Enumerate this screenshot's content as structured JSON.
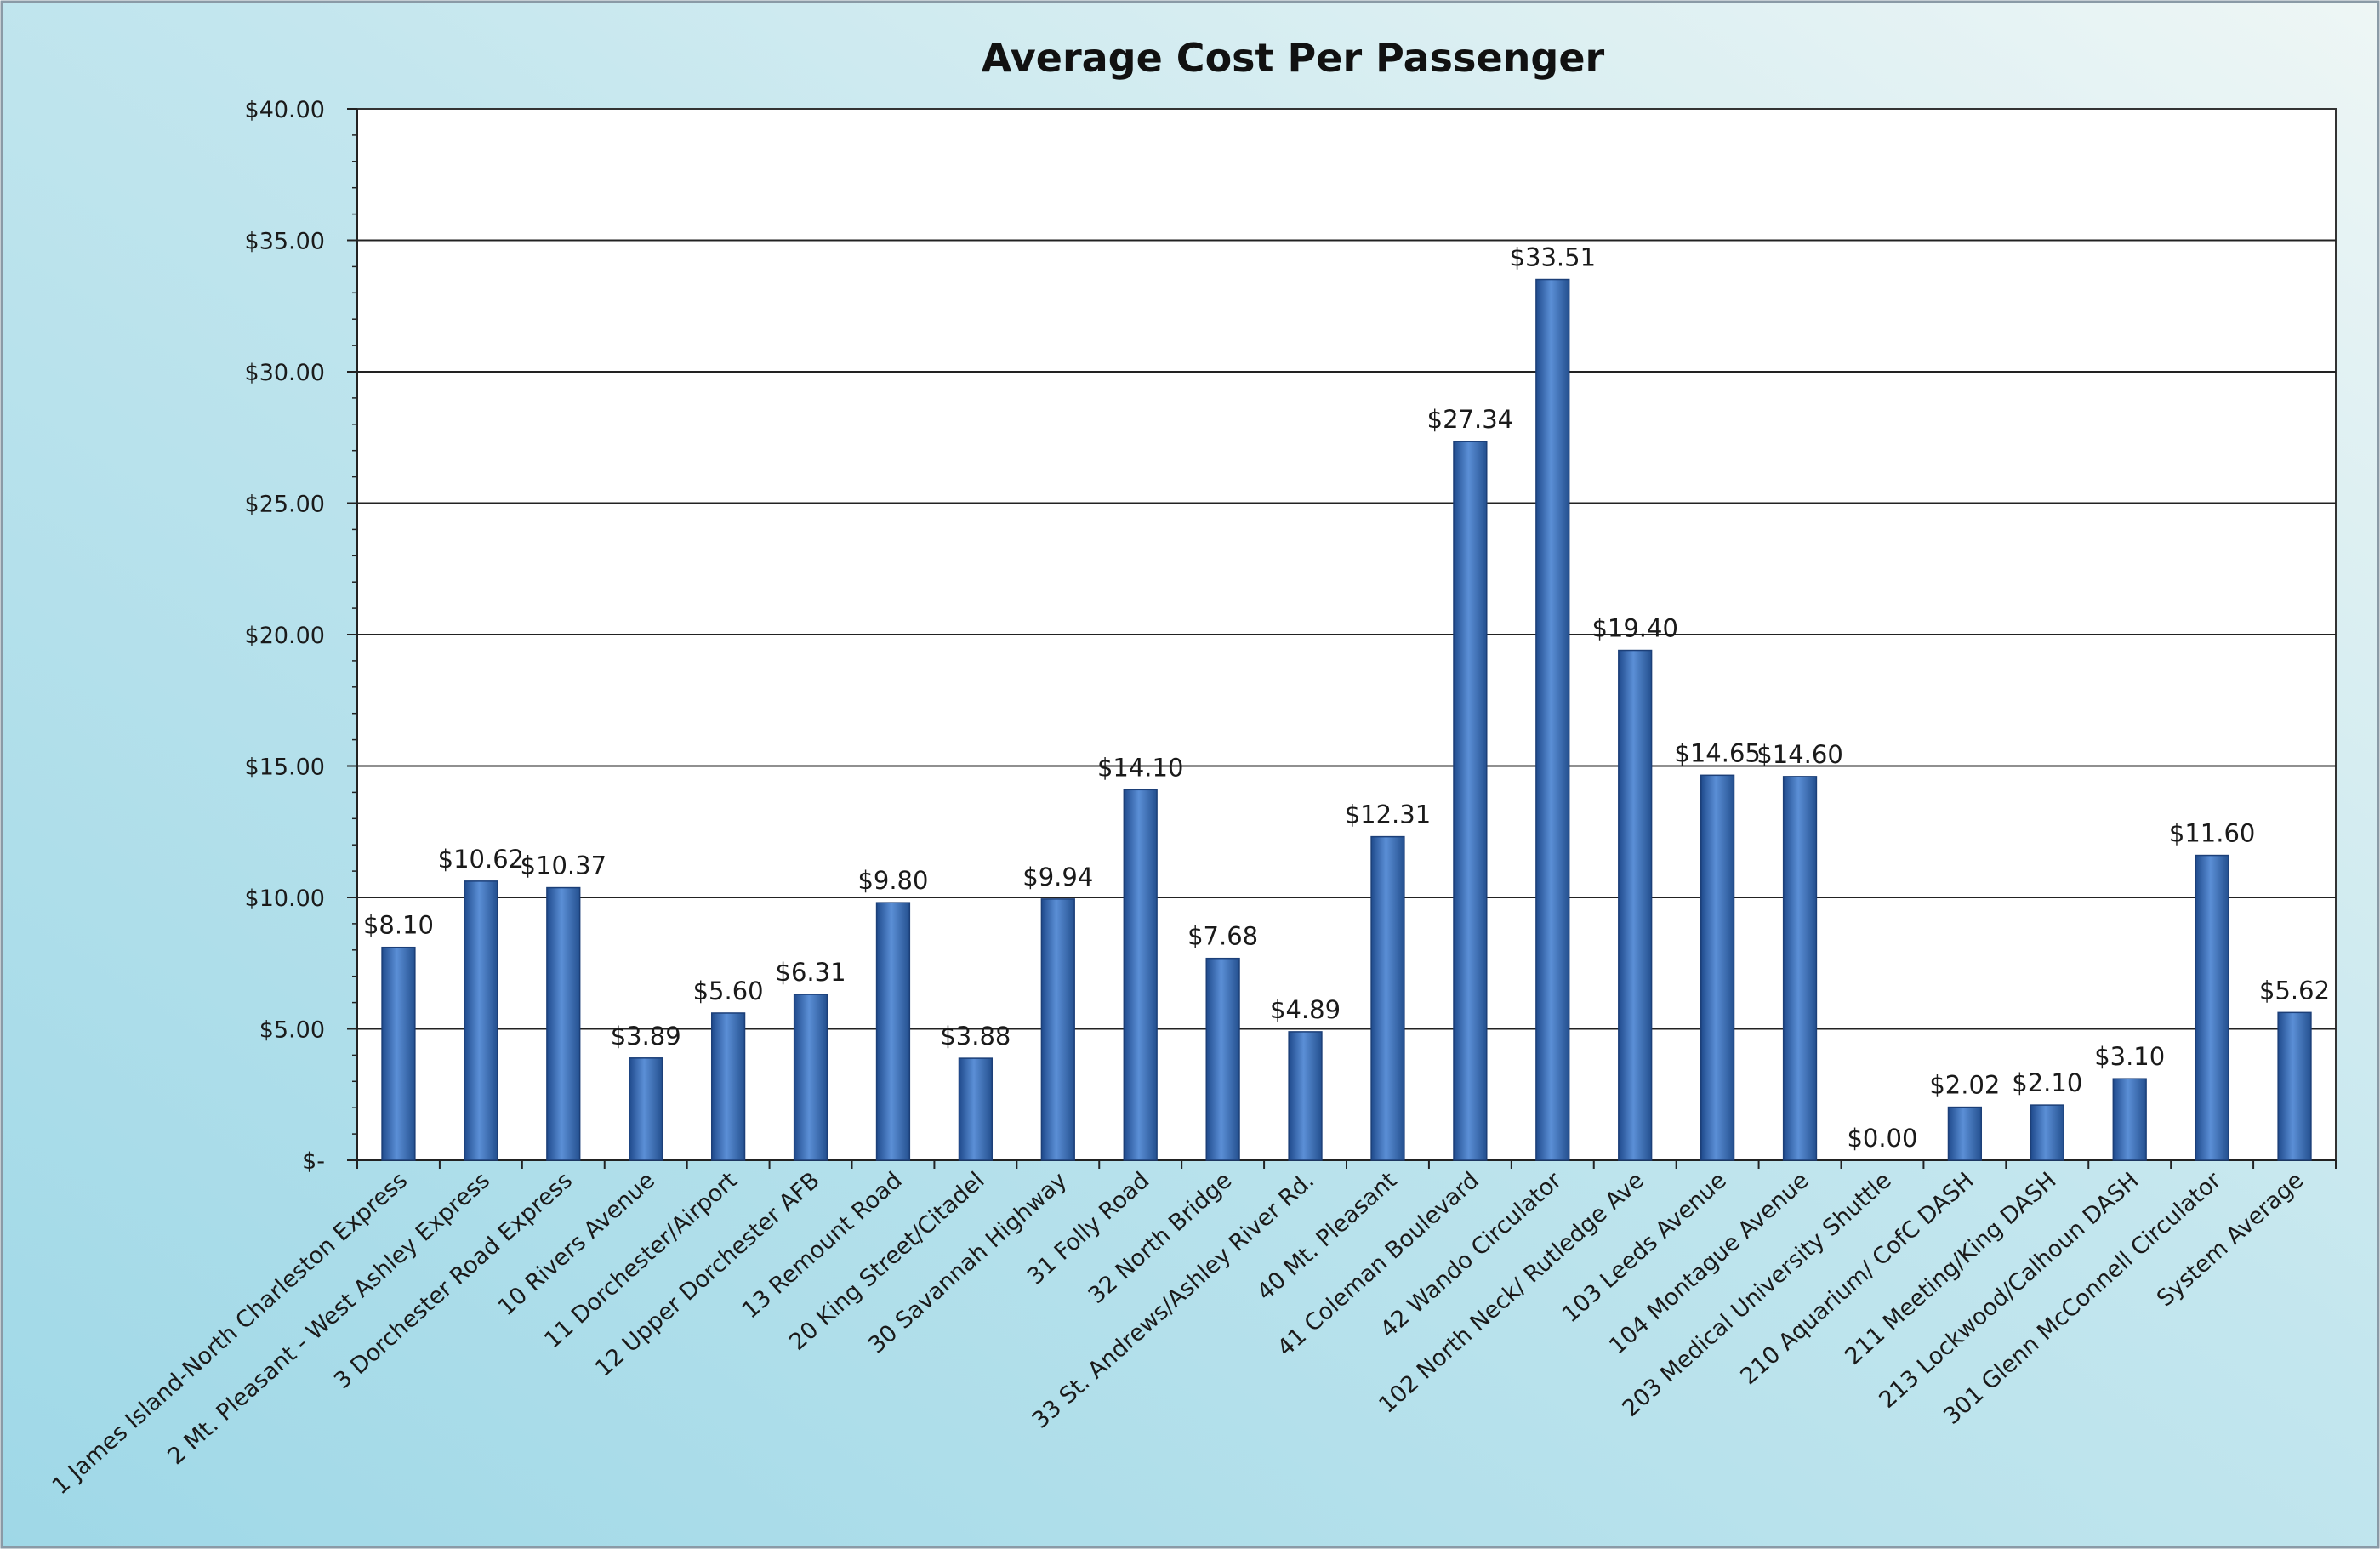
{
  "chart_data": {
    "type": "bar",
    "title": "Average Cost Per Passenger",
    "xlabel": "",
    "ylabel": "",
    "ylim": [
      0,
      40
    ],
    "yticks": [
      0,
      5,
      10,
      15,
      20,
      25,
      30,
      35,
      40
    ],
    "ytick_labels": [
      "$-",
      "$5.00",
      "$10.00",
      "$15.00",
      "$20.00",
      "$25.00",
      "$30.00",
      "$35.00",
      "$40.00"
    ],
    "grid": true,
    "legend": "none",
    "bar_color": "#3a6fbf",
    "categories": [
      "1 James Island-North Charleston Express",
      "2 Mt. Pleasant - West Ashley Express",
      "3 Dorchester Road Express",
      "10 Rivers Avenue",
      "11 Dorchester/Airport",
      "12 Upper Dorchester AFB",
      "13 Remount Road",
      "20 King Street/Citadel",
      "30 Savannah Highway",
      "31 Folly Road",
      "32 North Bridge",
      "33 St. Andrews/Ashley River Rd.",
      "40 Mt. Pleasant",
      "41 Coleman Boulevard",
      "42 Wando Circulator",
      "102 North Neck/ Rutledge Ave",
      "103 Leeds Avenue",
      "104 Montague Avenue",
      "203 Medical University Shuttle",
      "210 Aquarium/ CofC DASH",
      "211 Meeting/King DASH",
      "213 Lockwood/Calhoun DASH",
      "301 Glenn McConnell Circulator",
      "System Average"
    ],
    "values": [
      8.1,
      10.62,
      10.37,
      3.89,
      5.6,
      6.31,
      9.8,
      3.88,
      9.94,
      14.1,
      7.68,
      4.89,
      12.31,
      27.34,
      33.51,
      19.4,
      14.65,
      14.6,
      0.0,
      2.02,
      2.1,
      3.1,
      11.6,
      5.62
    ],
    "data_labels": [
      "$8.10",
      "$10.62",
      "$10.37",
      "$3.89",
      "$5.60",
      "$6.31",
      "$9.80",
      "$3.88",
      "$9.94",
      "$14.10",
      "$7.68",
      "$4.89",
      "$12.31",
      "$27.34",
      "$33.51",
      "$19.40",
      "$14.65",
      "$14.60",
      "$0.00",
      "$2.02",
      "$2.10",
      "$3.10",
      "$11.60",
      "$5.62"
    ]
  }
}
